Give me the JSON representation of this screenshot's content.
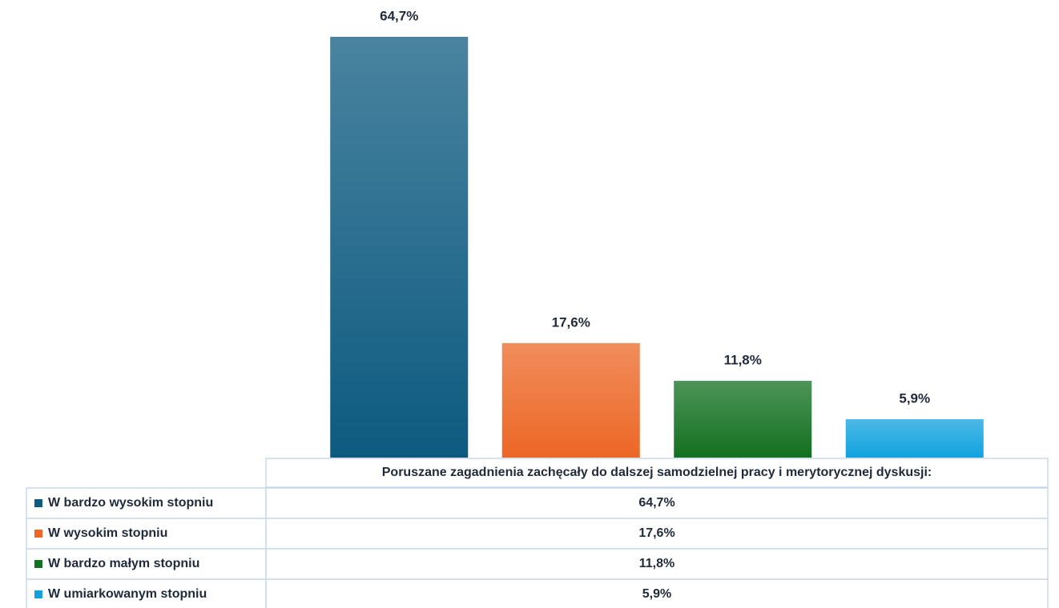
{
  "chart_data": {
    "type": "bar",
    "categories": [
      "Poruszane zagadnienia zachęcały do dalszej samodzielnej pracy i merytorycznej dyskusji:"
    ],
    "series": [
      {
        "name": "W bardzo wysokim stopniu",
        "color": "#0d5a80",
        "values": [
          64.7
        ],
        "value_labels": [
          "64,7%"
        ]
      },
      {
        "name": "W wysokim stopniu",
        "color": "#ec6726",
        "values": [
          17.6
        ],
        "value_labels": [
          "17,6%"
        ]
      },
      {
        "name": "W bardzo małym stopniu",
        "color": "#137020",
        "values": [
          11.8
        ],
        "value_labels": [
          "11,8%"
        ]
      },
      {
        "name": "W umiarkowanym stopniu",
        "color": "#11a2de",
        "values": [
          5.9
        ],
        "value_labels": [
          "5,9%"
        ]
      }
    ]
  }
}
